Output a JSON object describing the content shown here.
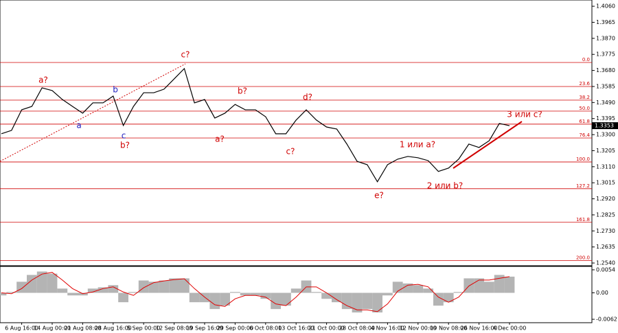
{
  "chart_data": [
    {
      "type": "line",
      "categories": [
        null,
        null,
        "6 Aug 16:00",
        null,
        null,
        "14 Aug 00:00",
        null,
        null,
        "21 Aug 08:00",
        null,
        null,
        "28 Aug 16:00",
        null,
        null,
        "5 Sep 00:00",
        null,
        null,
        "12 Sep 08:00",
        null,
        null,
        "19 Sep 16:00",
        null,
        null,
        "29 Sep 00:00",
        null,
        null,
        "6 Oct 08:00",
        null,
        null,
        "13 Oct 16:00",
        null,
        null,
        "21 Oct 00:00",
        null,
        null,
        "28 Oct 08:00",
        null,
        null,
        "4 Nov 16:00",
        null,
        null,
        "12 Nov 00:00",
        null,
        null,
        "19 Nov 08:00",
        null,
        null,
        "26 Nov 16:00",
        null,
        null,
        "4 Dec 00:00"
      ],
      "series": [
        {
          "color": "#000000",
          "values": [
            1.3305,
            1.3325,
            1.3447,
            1.3467,
            1.3577,
            1.3561,
            1.3508,
            1.3467,
            1.3427,
            1.3488,
            1.3488,
            1.3528,
            1.3354,
            1.3467,
            1.3548,
            1.3548,
            1.3569,
            1.363,
            1.3691,
            1.3488,
            1.3508,
            1.3398,
            1.3427,
            1.3479,
            1.3447,
            1.3447,
            1.3406,
            1.3305,
            1.3305,
            1.3386,
            1.3447,
            1.3386,
            1.3345,
            1.3333,
            1.3244,
            1.3142,
            1.3122,
            1.3021,
            1.3122,
            1.3155,
            1.3171,
            1.3163,
            1.3146,
            1.3082,
            1.3102,
            1.3155,
            1.3244,
            1.3224,
            1.3264,
            1.3366,
            1.3353
          ]
        }
      ],
      "ylim": [
        1.2524,
        1.4097
      ],
      "yticks": [
        {
          "value": 1.406,
          "label": "1.4060"
        },
        1.3965,
        {
          "value": 1.387,
          "label": "1.3870"
        },
        1.3775,
        {
          "value": 1.368,
          "label": "1.3680"
        },
        1.3585,
        {
          "value": 1.349,
          "label": "1.3490"
        },
        1.3395,
        {
          "value": 1.33,
          "label": "1.3300"
        },
        1.3205,
        {
          "value": 1.311,
          "label": "1.3110"
        },
        1.3015,
        {
          "value": 1.292,
          "label": "1.2920"
        },
        1.2825,
        {
          "value": 1.273,
          "label": "1.2730"
        },
        1.2635,
        {
          "value": 1.254,
          "label": "1.2540"
        }
      ],
      "levels": [
        {
          "value": 1.3727,
          "label": "0.0"
        },
        {
          "value": 1.3585,
          "label": "23.6"
        },
        {
          "value": 1.3504,
          "label": "38.2"
        },
        {
          "value": 1.3439,
          "label": "50.0"
        },
        {
          "value": 1.3362,
          "label": "61.8"
        },
        {
          "value": 1.328,
          "label": "76.4"
        },
        {
          "value": 1.3138,
          "label": "100.0"
        },
        {
          "value": 1.298,
          "label": "127.2"
        },
        {
          "value": 1.2781,
          "label": "161.8"
        },
        {
          "value": 1.2554,
          "label": "200.0"
        }
      ],
      "level_color": "#d00000",
      "annotations": [
        {
          "text": "c?",
          "color": "#d00000"
        },
        {
          "text": "a?",
          "color": "#d00000"
        },
        {
          "text": "b",
          "color": "#2020c0"
        },
        {
          "text": "a",
          "color": "#2020c0"
        },
        {
          "text": "c",
          "color": "#2020c0"
        },
        {
          "text": "b?",
          "color": "#d00000"
        },
        {
          "text": "b?",
          "color": "#d00000"
        },
        {
          "text": "a?",
          "color": "#d00000"
        },
        {
          "text": "d?",
          "color": "#d00000"
        },
        {
          "text": "c?",
          "color": "#d00000"
        },
        {
          "text": "1 или a?",
          "color": "#d00000"
        },
        {
          "text": "e?",
          "color": "#d00000"
        },
        {
          "text": "2 или b?",
          "color": "#d00000"
        },
        {
          "text": "3 или c?",
          "color": "#d00000"
        }
      ]
    },
    {
      "type": "macd",
      "series": [
        {
          "color": "#b4b4b4",
          "values": [
            -0.0006,
            0.0002,
            0.0026,
            0.0042,
            0.005,
            0.0045,
            0.001,
            -0.0006,
            -0.0006,
            0.001,
            0.0013,
            0.0018,
            -0.0022,
            0.0002,
            0.0029,
            0.0026,
            0.0029,
            0.0034,
            0.0034,
            -0.0022,
            -0.0022,
            -0.0038,
            -0.003,
            0.0002,
            -0.0006,
            -0.0006,
            -0.0014,
            -0.0038,
            -0.003,
            0.001,
            0.0029,
            0.0002,
            -0.0014,
            -0.0022,
            -0.0038,
            -0.0046,
            -0.0038,
            -0.0046,
            -0.0006,
            0.0026,
            0.0022,
            0.0018,
            0.001,
            -0.003,
            -0.0022,
            0.0002,
            0.0034,
            0.0034,
            0.0026,
            0.0042,
            0.0038
          ]
        },
        {
          "color": "#e00000",
          "values": [
            0,
            -0.0002,
            0.001,
            0.003,
            0.0044,
            0.0048,
            0.003,
            0.001,
            -0.0002,
            0.0002,
            0.001,
            0.0014,
            0.0002,
            -0.0006,
            0.0012,
            0.0024,
            0.0028,
            0.0031,
            0.0033,
            0.001,
            -0.001,
            -0.0028,
            -0.0032,
            -0.0014,
            -0.0006,
            -0.0006,
            -0.001,
            -0.0026,
            -0.003,
            -0.001,
            0.0014,
            0.0014,
            0,
            -0.0016,
            -0.003,
            -0.004,
            -0.004,
            -0.0044,
            -0.0026,
            0.0004,
            0.0018,
            0.002,
            0.0014,
            -0.001,
            -0.0022,
            -0.001,
            0.0016,
            0.003,
            0.003,
            0.0034,
            0.0038
          ]
        }
      ],
      "ylim": [
        -0.007,
        0.0062
      ],
      "yticks": [
        0.0054,
        {
          "value": 0,
          "label": "0.00"
        },
        -0.0062
      ]
    }
  ]
}
